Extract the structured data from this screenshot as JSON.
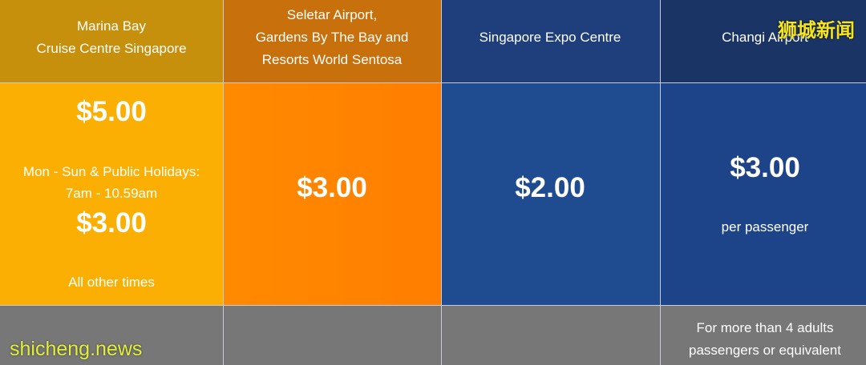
{
  "columns": [
    {
      "header": [
        "Marina Bay",
        "Cruise Centre Singapore"
      ],
      "body": [
        "$5.00",
        "Mon - Sun & Public Holidays:",
        "7am - 10.59am",
        "$3.00",
        "All other times"
      ]
    },
    {
      "header": [
        "Seletar Airport,",
        "Gardens By The Bay and",
        "Resorts World Sentosa"
      ],
      "body": [
        "$3.00"
      ]
    },
    {
      "header": [
        "Singapore Expo Centre"
      ],
      "body": [
        "$2.00"
      ]
    },
    {
      "header": [
        "Changi Airport"
      ],
      "body": [
        "$3.00",
        "per passenger"
      ],
      "footer": [
        "For more than 4 adults",
        "passengers or equivalent"
      ]
    }
  ],
  "watermarks": {
    "top": "狮城新闻",
    "bottom": "shicheng.news"
  }
}
